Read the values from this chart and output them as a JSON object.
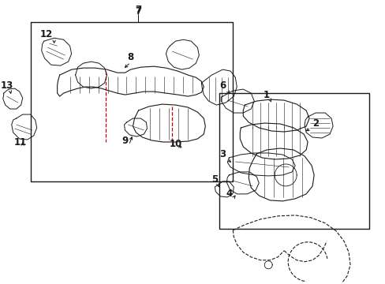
{
  "bg_color": "#ffffff",
  "line_color": "#1a1a1a",
  "red_color": "#cc0000",
  "fig_width": 4.89,
  "fig_height": 3.6,
  "dpi": 100,
  "label_fontsize": 8.5
}
